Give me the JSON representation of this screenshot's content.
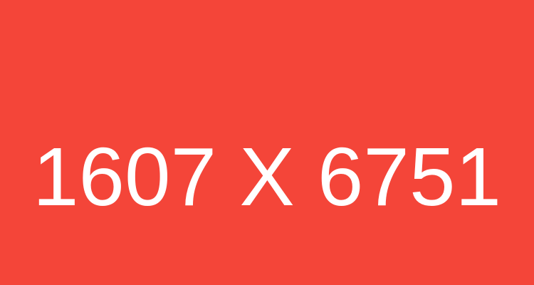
{
  "placeholder": {
    "text": "1607 X 6751",
    "background_color": "#f44539",
    "text_color": "#ffffff"
  }
}
